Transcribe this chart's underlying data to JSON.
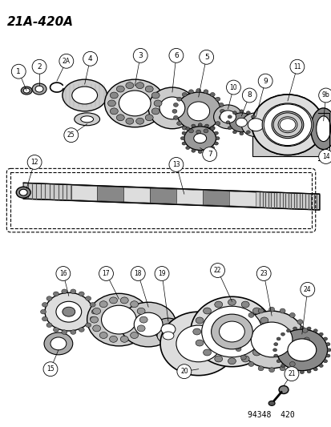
{
  "title": "21A-420A",
  "footer": "94348  420",
  "bg_color": "#ffffff",
  "line_color": "#000000",
  "title_fontsize": 11,
  "label_fontsize": 7,
  "diag_slope": 0.18
}
